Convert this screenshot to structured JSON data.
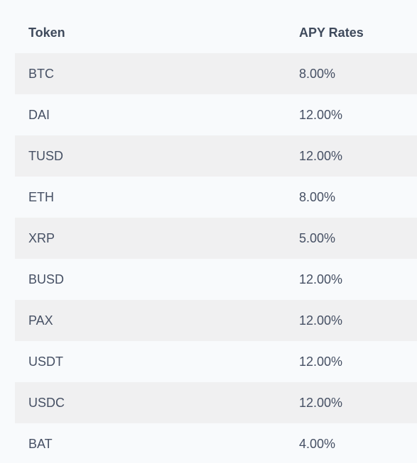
{
  "table": {
    "headers": {
      "token": "Token",
      "rate": "APY Rates"
    },
    "rows": [
      {
        "token": "BTC",
        "rate": "8.00%"
      },
      {
        "token": "DAI",
        "rate": "12.00%"
      },
      {
        "token": "TUSD",
        "rate": "12.00%"
      },
      {
        "token": "ETH",
        "rate": "8.00%"
      },
      {
        "token": "XRP",
        "rate": "5.00%"
      },
      {
        "token": "BUSD",
        "rate": "12.00%"
      },
      {
        "token": "PAX",
        "rate": "12.00%"
      },
      {
        "token": "USDT",
        "rate": "12.00%"
      },
      {
        "token": "USDC",
        "rate": "12.00%"
      },
      {
        "token": "BAT",
        "rate": "4.00%"
      }
    ]
  },
  "colors": {
    "page_background": "#f8fafc",
    "stripe_background": "#f0f0f1",
    "text": "#465064"
  }
}
